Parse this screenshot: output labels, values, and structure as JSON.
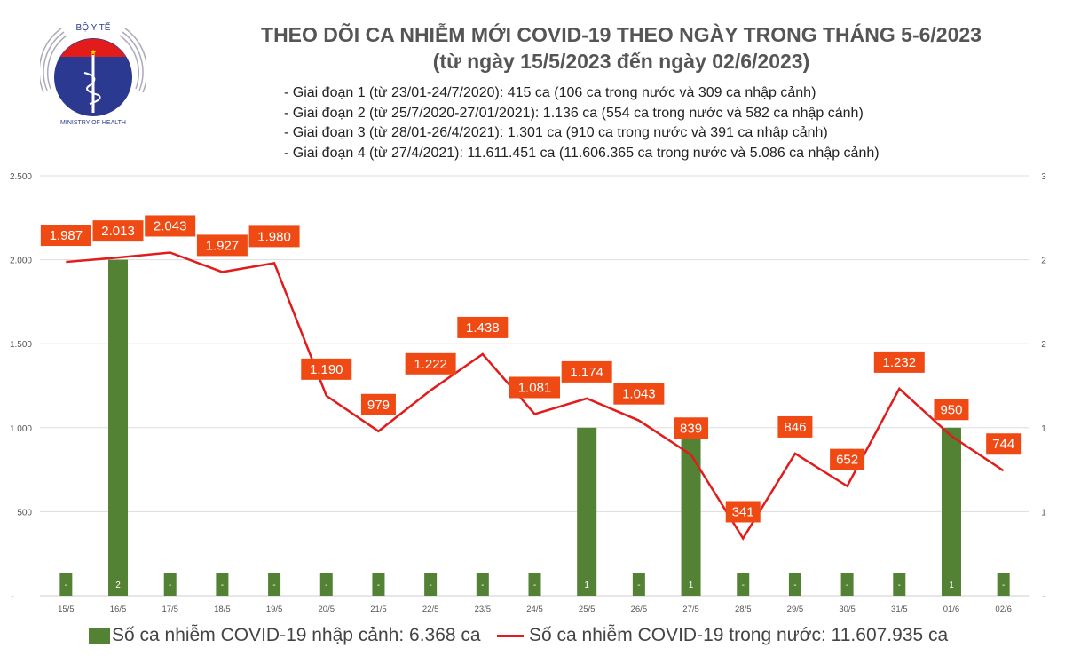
{
  "logo": {
    "top_text": "BỘ Y TẾ",
    "bottom_text": "MINISTRY OF HEALTH"
  },
  "title": "THEO DÕI CA NHIỄM MỚI COVID-19 THEO NGÀY TRONG THÁNG 5-6/2023",
  "subtitle": "(từ ngày 15/5/2023 đến ngày 02/6/2023)",
  "notes": [
    "- Giai đoạn 1 (từ 23/01-24/7/2020): 415 ca (106 ca trong nước và 309 ca nhập cảnh)",
    "- Giai đoạn 2 (từ 25/7/2020-27/01/2021): 1.136 ca (554 ca trong nước và 582 ca nhập cảnh)",
    "- Giai đoạn 3 (từ 28/01-26/4/2021): 1.301 ca (910 ca trong nước và 391 ca nhập cảnh)",
    "- Giai đoạn 4 (từ 27/4/2021): 11.611.451 ca (11.606.365 ca trong nước và 5.086 ca nhập cảnh)"
  ],
  "chart_data": {
    "type": "bar+line",
    "categories": [
      "15/5",
      "16/5",
      "17/5",
      "18/5",
      "19/5",
      "20/5",
      "21/5",
      "22/5",
      "23/5",
      "24/5",
      "25/5",
      "26/5",
      "27/5",
      "28/5",
      "29/5",
      "30/5",
      "31/5",
      "01/6",
      "02/6"
    ],
    "series": [
      {
        "name": "Số ca nhiễm COVID-19 nhập cảnh: 6.368 ca",
        "type": "bar",
        "axis": "right",
        "color": "#548235",
        "values": [
          0,
          2,
          0,
          0,
          0,
          0,
          0,
          0,
          0,
          0,
          1,
          0,
          1,
          0,
          0,
          0,
          0,
          1,
          0
        ],
        "labels": [
          "-",
          "2",
          "-",
          "-",
          "-",
          "-",
          "-",
          "-",
          "-",
          "-",
          "1",
          "-",
          "1",
          "-",
          "-",
          "-",
          "-",
          "1",
          "-"
        ]
      },
      {
        "name": "Số ca nhiễm COVID-19 trong nước: 11.607.935 ca",
        "type": "line",
        "axis": "left",
        "color": "#e21b1b",
        "label_bg": "#f04a14",
        "values": [
          1987,
          2013,
          2043,
          1927,
          1980,
          1190,
          979,
          1222,
          1438,
          1081,
          1174,
          1043,
          839,
          341,
          846,
          652,
          1232,
          950,
          744
        ],
        "labels": [
          "1.987",
          "2.013",
          "2.043",
          "1.927",
          "1.980",
          "1.190",
          "979",
          "1.222",
          "1.438",
          "1.081",
          "1.174",
          "1.043",
          "839",
          "341",
          "846",
          "652",
          "1.232",
          "950",
          "744"
        ]
      }
    ],
    "left_axis": {
      "range": [
        0,
        2500
      ],
      "ticks": [
        0,
        500,
        1000,
        1500,
        2000,
        2500
      ],
      "tick_labels": [
        "-",
        "500",
        "1.000",
        "1.500",
        "2.000",
        "2.500"
      ]
    },
    "right_axis": {
      "range": [
        0,
        2.5
      ],
      "ticks": [
        0,
        0.5,
        1,
        1.5,
        2,
        2.5
      ],
      "tick_labels": [
        "-",
        "1",
        "1",
        "2",
        "2",
        "3"
      ]
    },
    "grid": true,
    "legend": "bottom"
  }
}
